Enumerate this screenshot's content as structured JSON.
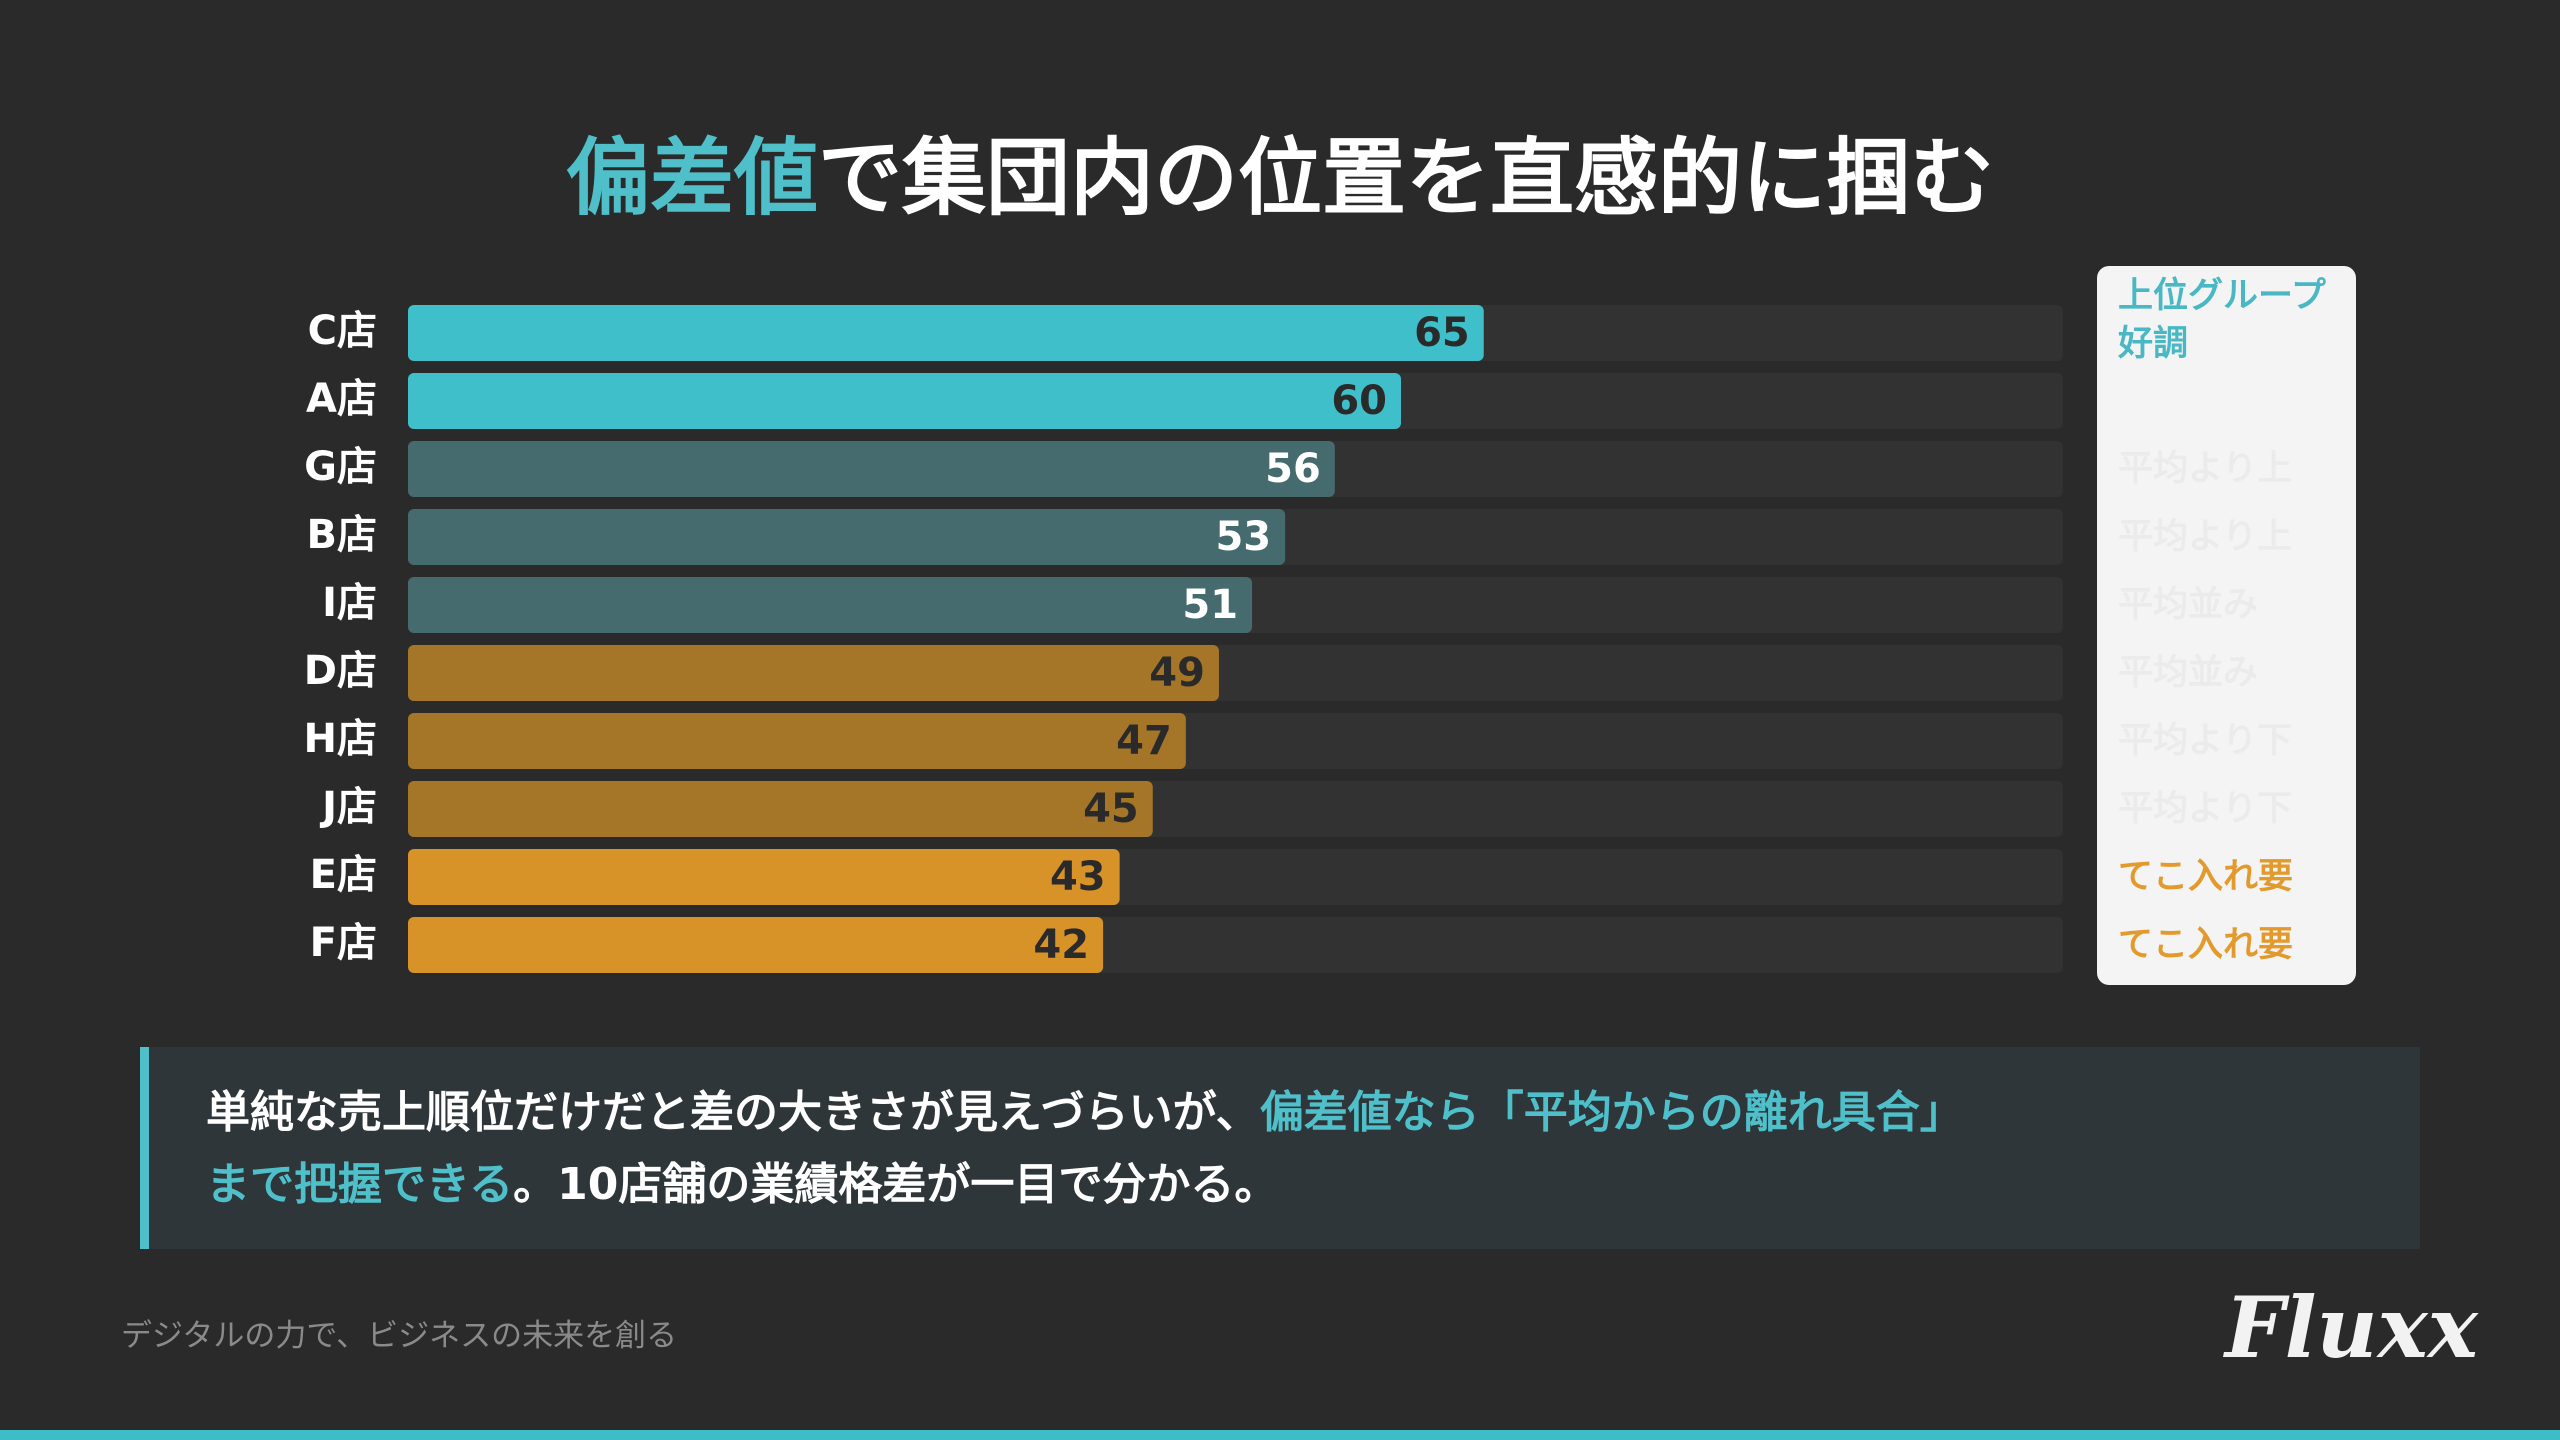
{
  "title": [
    "偏差値",
    "で集団内の位置を直感的に掴む"
  ],
  "title_colors": [
    "#4fbfca",
    "#ffffff"
  ],
  "chart_data": {
    "type": "hbar",
    "categories": [
      "C店",
      "A店",
      "G店",
      "B店",
      "I店",
      "D店",
      "H店",
      "J店",
      "E店",
      "F店"
    ],
    "values": [
      65,
      60,
      56,
      53,
      51,
      49,
      47,
      45,
      43,
      42
    ],
    "colors": [
      "#3fbfc9",
      "#3fbfc9",
      "#456b6e",
      "#456b6e",
      "#456b6e",
      "#a57628",
      "#a57628",
      "#a57628",
      "#d79228",
      "#d79228"
    ],
    "value_label_colors": [
      "#2a2a2a",
      "#2a2a2a",
      "#ffffff",
      "#ffffff",
      "#ffffff",
      "#2a2a2a",
      "#2a2a2a",
      "#2a2a2a",
      "#2a2a2a",
      "#2a2a2a"
    ],
    "xlim": [
      0,
      100
    ],
    "side_labels": [
      "上位グループ好調",
      null,
      "平均より上",
      "平均より上",
      "平均並み",
      "平均並み",
      "平均より下",
      "平均より下",
      "てこ入れ要",
      "てこ入れ要"
    ],
    "side_label_colors": [
      "#4ab8c4",
      null,
      "#ebebeb",
      "#ebebeb",
      "#ebebeb",
      "#ebebeb",
      "#ebebeb",
      "#ebebeb",
      "#e39a2c",
      "#e39a2c"
    ]
  },
  "note": {
    "lines": [
      [
        {
          "text": "単純な売上順位だけだと差の大きさが見えづらいが、",
          "color": "#ffffff"
        },
        {
          "text": "偏差値なら「平均からの離れ具合」",
          "color": "#4fbfca"
        }
      ],
      [
        {
          "text": "まで把握できる",
          "color": "#4fbfca"
        },
        {
          "text": "。10店舗の業績格差が一目で分かる。",
          "color": "#ffffff"
        }
      ]
    ]
  },
  "footer": "デジタルの力で、ビジネスの未来を創る",
  "logo": "Fluxx"
}
